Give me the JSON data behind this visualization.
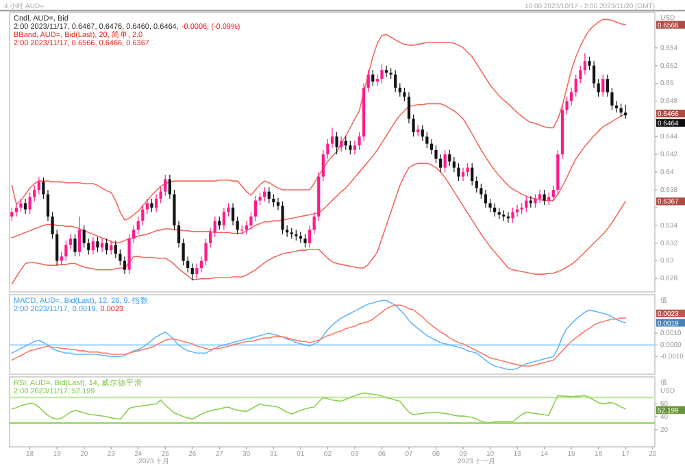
{
  "chart_data": [
    {
      "type": "candlestick",
      "title": "4 小时 AUD=",
      "subtitle": "10:00 2023/10/17 - 2:00 2023/11/20 (GMT)",
      "ylabel": "USD",
      "ohlc": [
        [
          0.635,
          0.636,
          0.6345,
          0.6355
        ],
        [
          0.6355,
          0.6365,
          0.635,
          0.636
        ],
        [
          0.636,
          0.637,
          0.6355,
          0.6365
        ],
        [
          0.6365,
          0.637,
          0.6353,
          0.6358
        ],
        [
          0.6358,
          0.6377,
          0.6353,
          0.6372
        ],
        [
          0.6372,
          0.6385,
          0.6367,
          0.638
        ],
        [
          0.638,
          0.6394,
          0.6375,
          0.6389
        ],
        [
          0.6389,
          0.6394,
          0.637,
          0.6375
        ],
        [
          0.6375,
          0.638,
          0.6345,
          0.635
        ],
        [
          0.635,
          0.6355,
          0.6325,
          0.633
        ],
        [
          0.633,
          0.6335,
          0.6295,
          0.63
        ],
        [
          0.63,
          0.631,
          0.6295,
          0.6305
        ],
        [
          0.6305,
          0.6323,
          0.63,
          0.6318
        ],
        [
          0.6318,
          0.633,
          0.6313,
          0.6325
        ],
        [
          0.6325,
          0.633,
          0.6305,
          0.631
        ],
        [
          0.631,
          0.635,
          0.6305,
          0.6335
        ],
        [
          0.6335,
          0.634,
          0.6315,
          0.632
        ],
        [
          0.632,
          0.6325,
          0.6307,
          0.6312
        ],
        [
          0.6312,
          0.6327,
          0.6307,
          0.6322
        ],
        [
          0.6322,
          0.6327,
          0.631,
          0.6315
        ],
        [
          0.6315,
          0.6325,
          0.631,
          0.632
        ],
        [
          0.632,
          0.6325,
          0.6307,
          0.6312
        ],
        [
          0.6312,
          0.6323,
          0.6307,
          0.6318
        ],
        [
          0.6318,
          0.6323,
          0.6303,
          0.6308
        ],
        [
          0.6308,
          0.6313,
          0.6295,
          0.63
        ],
        [
          0.63,
          0.6305,
          0.6285,
          0.629
        ],
        [
          0.629,
          0.633,
          0.6285,
          0.6325
        ],
        [
          0.6325,
          0.634,
          0.632,
          0.6335
        ],
        [
          0.6335,
          0.635,
          0.633,
          0.6345
        ],
        [
          0.6345,
          0.6363,
          0.634,
          0.6358
        ],
        [
          0.6358,
          0.637,
          0.6353,
          0.6365
        ],
        [
          0.6365,
          0.637,
          0.6355,
          0.636
        ],
        [
          0.636,
          0.6375,
          0.6355,
          0.637
        ],
        [
          0.637,
          0.6383,
          0.6365,
          0.6378
        ],
        [
          0.6378,
          0.6397,
          0.6373,
          0.6392
        ],
        [
          0.6392,
          0.6397,
          0.637,
          0.6375
        ],
        [
          0.6375,
          0.638,
          0.6335,
          0.634
        ],
        [
          0.634,
          0.6345,
          0.6315,
          0.632
        ],
        [
          0.632,
          0.6325,
          0.6295,
          0.63
        ],
        [
          0.63,
          0.6305,
          0.6287,
          0.6292
        ],
        [
          0.6292,
          0.6297,
          0.6278,
          0.6285
        ],
        [
          0.6285,
          0.6297,
          0.628,
          0.6292
        ],
        [
          0.6292,
          0.6305,
          0.6287,
          0.63
        ],
        [
          0.63,
          0.6325,
          0.6295,
          0.632
        ],
        [
          0.632,
          0.6337,
          0.6315,
          0.6332
        ],
        [
          0.6332,
          0.635,
          0.6327,
          0.6345
        ],
        [
          0.6345,
          0.635,
          0.6335,
          0.634
        ],
        [
          0.634,
          0.636,
          0.6335,
          0.6355
        ],
        [
          0.6355,
          0.6365,
          0.635,
          0.636
        ],
        [
          0.636,
          0.6365,
          0.634,
          0.6345
        ],
        [
          0.6345,
          0.635,
          0.633,
          0.6335
        ],
        [
          0.6335,
          0.634,
          0.633,
          0.6335
        ],
        [
          0.6335,
          0.6345,
          0.633,
          0.634
        ],
        [
          0.634,
          0.6355,
          0.6335,
          0.635
        ],
        [
          0.635,
          0.6373,
          0.6345,
          0.6368
        ],
        [
          0.6368,
          0.6377,
          0.6363,
          0.6372
        ],
        [
          0.6372,
          0.6383,
          0.6367,
          0.6378
        ],
        [
          0.6378,
          0.6383,
          0.6365,
          0.637
        ],
        [
          0.637,
          0.6375,
          0.6361,
          0.6366
        ],
        [
          0.6366,
          0.6371,
          0.6357,
          0.6362
        ],
        [
          0.6362,
          0.6367,
          0.633,
          0.6335
        ],
        [
          0.6335,
          0.634,
          0.6327,
          0.6332
        ],
        [
          0.6332,
          0.6337,
          0.6325,
          0.633
        ],
        [
          0.633,
          0.6335,
          0.6323,
          0.6328
        ],
        [
          0.6328,
          0.6333,
          0.632,
          0.6325
        ],
        [
          0.6325,
          0.633,
          0.6315,
          0.632
        ],
        [
          0.632,
          0.634,
          0.6315,
          0.6335
        ],
        [
          0.6335,
          0.6355,
          0.633,
          0.635
        ],
        [
          0.635,
          0.64,
          0.6345,
          0.6395
        ],
        [
          0.6395,
          0.6425,
          0.639,
          0.642
        ],
        [
          0.642,
          0.6437,
          0.6415,
          0.6432
        ],
        [
          0.6432,
          0.645,
          0.6427,
          0.644
        ],
        [
          0.644,
          0.6445,
          0.642,
          0.6428
        ],
        [
          0.6428,
          0.644,
          0.6423,
          0.6435
        ],
        [
          0.6435,
          0.644,
          0.6425,
          0.643
        ],
        [
          0.643,
          0.6435,
          0.642,
          0.6425
        ],
        [
          0.6425,
          0.6435,
          0.642,
          0.643
        ],
        [
          0.643,
          0.6445,
          0.6425,
          0.644
        ],
        [
          0.644,
          0.65,
          0.6435,
          0.6495
        ],
        [
          0.6495,
          0.6515,
          0.649,
          0.651
        ],
        [
          0.651,
          0.6515,
          0.6497,
          0.6502
        ],
        [
          0.6502,
          0.651,
          0.6497,
          0.6505
        ],
        [
          0.6505,
          0.6522,
          0.65,
          0.6515
        ],
        [
          0.6515,
          0.652,
          0.6507,
          0.6512
        ],
        [
          0.6512,
          0.6517,
          0.6505,
          0.651
        ],
        [
          0.651,
          0.6515,
          0.649,
          0.6495
        ],
        [
          0.6495,
          0.65,
          0.6485,
          0.649
        ],
        [
          0.649,
          0.6495,
          0.648,
          0.6485
        ],
        [
          0.6485,
          0.649,
          0.6455,
          0.646
        ],
        [
          0.646,
          0.6465,
          0.644,
          0.6445
        ],
        [
          0.6445,
          0.6453,
          0.644,
          0.6448
        ],
        [
          0.6448,
          0.6453,
          0.6435,
          0.644
        ],
        [
          0.644,
          0.6445,
          0.6427,
          0.6432
        ],
        [
          0.6432,
          0.6437,
          0.642,
          0.6425
        ],
        [
          0.6425,
          0.643,
          0.641,
          0.6415
        ],
        [
          0.6415,
          0.642,
          0.64,
          0.6405
        ],
        [
          0.6405,
          0.6425,
          0.64,
          0.642
        ],
        [
          0.642,
          0.6425,
          0.6407,
          0.6412
        ],
        [
          0.6412,
          0.6417,
          0.64,
          0.6405
        ],
        [
          0.6405,
          0.641,
          0.639,
          0.6395
        ],
        [
          0.6395,
          0.6405,
          0.639,
          0.64
        ],
        [
          0.64,
          0.641,
          0.6395,
          0.6405
        ],
        [
          0.6405,
          0.641,
          0.6385,
          0.639
        ],
        [
          0.639,
          0.6395,
          0.6377,
          0.6382
        ],
        [
          0.6382,
          0.6387,
          0.637,
          0.6375
        ],
        [
          0.6375,
          0.638,
          0.636,
          0.6365
        ],
        [
          0.6365,
          0.637,
          0.6355,
          0.636
        ],
        [
          0.636,
          0.6365,
          0.635,
          0.6355
        ],
        [
          0.6355,
          0.636,
          0.6347,
          0.6352
        ],
        [
          0.6352,
          0.6357,
          0.6345,
          0.635
        ],
        [
          0.635,
          0.6355,
          0.6343,
          0.6348
        ],
        [
          0.6348,
          0.636,
          0.6343,
          0.6355
        ],
        [
          0.6355,
          0.6363,
          0.635,
          0.6358
        ],
        [
          0.6358,
          0.6365,
          0.6353,
          0.636
        ],
        [
          0.636,
          0.6373,
          0.6355,
          0.6368
        ],
        [
          0.6368,
          0.6373,
          0.636,
          0.6365
        ],
        [
          0.6365,
          0.6375,
          0.636,
          0.637
        ],
        [
          0.637,
          0.638,
          0.6365,
          0.6375
        ],
        [
          0.6375,
          0.638,
          0.6363,
          0.6368
        ],
        [
          0.6368,
          0.6377,
          0.6363,
          0.6372
        ],
        [
          0.6372,
          0.6385,
          0.6367,
          0.638
        ],
        [
          0.638,
          0.6425,
          0.6375,
          0.642
        ],
        [
          0.642,
          0.6475,
          0.6415,
          0.647
        ],
        [
          0.647,
          0.6485,
          0.6465,
          0.648
        ],
        [
          0.648,
          0.6495,
          0.6475,
          0.649
        ],
        [
          0.649,
          0.651,
          0.6485,
          0.6505
        ],
        [
          0.6505,
          0.652,
          0.65,
          0.6515
        ],
        [
          0.6515,
          0.6534,
          0.651,
          0.6525
        ],
        [
          0.6525,
          0.653,
          0.6515,
          0.652
        ],
        [
          0.652,
          0.6525,
          0.6495,
          0.65
        ],
        [
          0.65,
          0.6505,
          0.6485,
          0.649
        ],
        [
          0.649,
          0.651,
          0.6485,
          0.6505
        ],
        [
          0.6505,
          0.651,
          0.6485,
          0.649
        ],
        [
          0.649,
          0.6495,
          0.647,
          0.6475
        ],
        [
          0.6475,
          0.648,
          0.6467,
          0.6472
        ],
        [
          0.6472,
          0.6477,
          0.6462,
          0.6467
        ],
        [
          0.6467,
          0.6476,
          0.646,
          0.6464
        ],
        null,
        null,
        null,
        null,
        null,
        null
      ],
      "series": [
        {
          "type": "line",
          "color": "#f4685c",
          "values": [
            0.6385,
            0.6364,
            0.6368,
            0.6375,
            0.6382,
            0.6387,
            0.639,
            0.639,
            0.639,
            0.6389,
            0.6389,
            0.6389,
            0.6388,
            0.6388,
            0.6388,
            0.6388,
            0.6387,
            0.6387,
            0.6387,
            0.6385,
            0.6382,
            0.6379,
            0.6377,
            0.6368,
            0.6355,
            0.6346,
            0.6348,
            0.6352,
            0.6356,
            0.6362,
            0.6368,
            0.6374,
            0.6379,
            0.6384,
            0.6387,
            0.6389,
            0.639,
            0.639,
            0.639,
            0.639,
            0.639,
            0.639,
            0.639,
            0.639,
            0.639,
            0.639,
            0.6391,
            0.6391,
            0.6391,
            0.639,
            0.639,
            0.6384,
            0.6378,
            0.6374,
            0.638,
            0.6386,
            0.639,
            0.6388,
            0.6385,
            0.6382,
            0.638,
            0.638,
            0.638,
            0.638,
            0.638,
            0.638,
            0.638,
            0.6387,
            0.6396,
            0.6404,
            0.6412,
            0.6418,
            0.6423,
            0.6432,
            0.6441,
            0.645,
            0.646,
            0.6469,
            0.649,
            0.651,
            0.653,
            0.6545,
            0.6554,
            0.6555,
            0.6552,
            0.6549,
            0.6546,
            0.6544,
            0.6543,
            0.6543,
            0.6544,
            0.6545,
            0.6546,
            0.6546,
            0.6546,
            0.6546,
            0.6546,
            0.6546,
            0.6545,
            0.6543,
            0.654,
            0.6535,
            0.653,
            0.6522,
            0.6514,
            0.6506,
            0.6498,
            0.6492,
            0.6486,
            0.6481,
            0.6477,
            0.6472,
            0.6467,
            0.6463,
            0.6459,
            0.6456,
            0.6455,
            0.6453,
            0.6451,
            0.645,
            0.645,
            0.646,
            0.6475,
            0.6495,
            0.6515,
            0.653,
            0.6542,
            0.6552,
            0.656,
            0.6565,
            0.6569,
            0.6572,
            0.6572,
            0.6571,
            0.6569,
            0.6567,
            0.6566,
            null,
            null,
            null,
            null,
            null,
            null
          ]
        },
        {
          "type": "line",
          "color": "#f4685c",
          "values": [
            0.6326,
            0.6328,
            0.633,
            0.6332,
            0.6334,
            0.6336,
            0.6338,
            0.634,
            0.6341,
            0.6341,
            0.634,
            0.634,
            0.6339,
            0.6339,
            0.6338,
            0.6336,
            0.6334,
            0.6332,
            0.633,
            0.6328,
            0.6326,
            0.6324,
            0.6322,
            0.632,
            0.6321,
            0.6323,
            0.6325,
            0.6326,
            0.6328,
            0.6329,
            0.633,
            0.6332,
            0.6334,
            0.6335,
            0.6336,
            0.6336,
            0.6335,
            0.6335,
            0.6334,
            0.6334,
            0.6333,
            0.6333,
            0.6333,
            0.6333,
            0.6333,
            0.6332,
            0.6332,
            0.6332,
            0.6332,
            0.6331,
            0.6331,
            0.6331,
            0.6334,
            0.6337,
            0.634,
            0.6342,
            0.6344,
            0.6344,
            0.6345,
            0.6345,
            0.6346,
            0.6347,
            0.6348,
            0.6349,
            0.635,
            0.6351,
            0.6352,
            0.6353,
            0.6354,
            0.6358,
            0.6363,
            0.6368,
            0.6373,
            0.6378,
            0.6382,
            0.6388,
            0.6394,
            0.64,
            0.6406,
            0.6412,
            0.6418,
            0.6425,
            0.6433,
            0.6441,
            0.6449,
            0.6457,
            0.6464,
            0.6469,
            0.6474,
            0.6475,
            0.6476,
            0.6476,
            0.6477,
            0.6477,
            0.6477,
            0.6477,
            0.6475,
            0.6472,
            0.6469,
            0.6465,
            0.646,
            0.6452,
            0.6443,
            0.6434,
            0.6425,
            0.6417,
            0.6409,
            0.6402,
            0.6396,
            0.639,
            0.6385,
            0.6381,
            0.6378,
            0.6375,
            0.6373,
            0.6371,
            0.637,
            0.6369,
            0.6368,
            0.6368,
            0.6368,
            0.6375,
            0.6384,
            0.6394,
            0.6405,
            0.6415,
            0.6422,
            0.6429,
            0.6435,
            0.6441,
            0.6446,
            0.6451,
            0.6454,
            0.6457,
            0.646,
            0.6463,
            0.6466,
            null,
            null,
            null,
            null,
            null,
            null
          ]
        },
        {
          "type": "line",
          "color": "#f4685c",
          "values": [
            0.6274,
            0.6282,
            0.629,
            0.6297,
            0.6298,
            0.6298,
            0.6297,
            0.6296,
            0.6295,
            0.6295,
            0.6295,
            0.6296,
            0.6296,
            0.6297,
            0.6297,
            0.6295,
            0.6293,
            0.6292,
            0.6291,
            0.629,
            0.629,
            0.629,
            0.629,
            0.6291,
            0.6292,
            0.6292,
            0.6298,
            0.6305,
            0.6305,
            0.6304,
            0.6304,
            0.6304,
            0.6303,
            0.6303,
            0.6303,
            0.63,
            0.6296,
            0.6291,
            0.6287,
            0.6283,
            0.6279,
            0.6279,
            0.628,
            0.628,
            0.628,
            0.6281,
            0.6281,
            0.6281,
            0.6281,
            0.6282,
            0.6282,
            0.6282,
            0.6284,
            0.6287,
            0.629,
            0.6294,
            0.6298,
            0.6301,
            0.6304,
            0.6306,
            0.6308,
            0.6309,
            0.631,
            0.6311,
            0.6312,
            0.6312,
            0.6313,
            0.6313,
            0.6313,
            0.6308,
            0.6303,
            0.6299,
            0.6297,
            0.6296,
            0.6295,
            0.6294,
            0.6293,
            0.6292,
            0.6292,
            0.6296,
            0.6303,
            0.631,
            0.6325,
            0.634,
            0.6355,
            0.637,
            0.6385,
            0.6396,
            0.6405,
            0.6408,
            0.641,
            0.641,
            0.641,
            0.6408,
            0.6405,
            0.64,
            0.6394,
            0.6386,
            0.6378,
            0.637,
            0.6362,
            0.6354,
            0.6346,
            0.6338,
            0.633,
            0.6323,
            0.6316,
            0.631,
            0.6304,
            0.6298,
            0.6292,
            0.629,
            0.6289,
            0.6288,
            0.6287,
            0.6286,
            0.6285,
            0.6285,
            0.6285,
            0.6286,
            0.6286,
            0.6288,
            0.629,
            0.6293,
            0.6296,
            0.63,
            0.6305,
            0.631,
            0.6315,
            0.632,
            0.6325,
            0.633,
            0.6336,
            0.6343,
            0.6351,
            0.6359,
            0.6367,
            null,
            null,
            null,
            null,
            null,
            null
          ]
        }
      ],
      "ylim": [
        0.6265,
        0.658
      ],
      "yticks": [
        0.628,
        0.63,
        0.632,
        0.634,
        {
          "value": 0.636,
          "label": null
        },
        0.638,
        0.64,
        0.642,
        0.644,
        {
          "value": 0.646,
          "label": null
        },
        0.648,
        0.65,
        0.652,
        0.654
      ],
      "tick_labels": "y",
      "annotations": [
        "Cndl, AUD=, Bid",
        "2:00 2023/11/17, 0.6467, 0.6476, 0.6460, 0.6464,",
        "-0.0006, (-0.09%)",
        "BBand, AUD=, Bid(Last), 20, 简单, 2.0",
        "2:00 2023/11/17, 0.6566, 0.6466, 0.6367",
        "0.6566",
        "0.6466",
        "0.6464",
        "0.6367"
      ]
    },
    {
      "type": "line",
      "ylabel": "值",
      "series": [
        {
          "color": "#62b6ff",
          "values": [
            -0.0007,
            -0.0005,
            -0.0003,
            -0.0001,
            0.0001,
            0.0003,
            0.0004,
            0.0002,
            0.0,
            -0.0003,
            -0.0005,
            -0.0006,
            -0.0007,
            -0.0007,
            -0.0008,
            -0.0008,
            -0.0008,
            -0.0008,
            -0.0008,
            -0.0008,
            -0.0009,
            -0.0009,
            -0.001,
            -0.001,
            -0.001,
            -0.0009,
            -0.0007,
            -0.0005,
            -0.0004,
            -0.0002,
            0.0001,
            0.0004,
            0.0007,
            0.0009,
            0.0011,
            0.0008,
            0.0004,
            0.0,
            -0.0003,
            -0.0005,
            -0.0006,
            -0.0007,
            -0.0007,
            -0.0007,
            -0.0005,
            -0.0003,
            -0.0001,
            0.0,
            0.0001,
            0.0002,
            0.0003,
            0.0004,
            0.0005,
            0.0006,
            0.0007,
            0.0008,
            0.0009,
            0.001,
            0.0009,
            0.0008,
            0.0007,
            0.0005,
            0.0004,
            0.0002,
            0.0001,
            0.0,
            -0.0001,
            0.0001,
            0.0003,
            0.0008,
            0.0013,
            0.0017,
            0.002,
            0.0023,
            0.0025,
            0.0027,
            0.0029,
            0.0031,
            0.0033,
            0.0035,
            0.0036,
            0.0037,
            0.0038,
            0.0038,
            0.0036,
            0.0034,
            0.003,
            0.0026,
            0.0021,
            0.0017,
            0.0014,
            0.0011,
            0.0008,
            0.0006,
            0.0004,
            0.0002,
            0.0001,
            0.0,
            -0.0001,
            -0.0002,
            -0.0003,
            -0.0005,
            -0.0006,
            -0.0007,
            -0.001,
            -0.0013,
            -0.0016,
            -0.0018,
            -0.0019,
            -0.002,
            -0.0021,
            -0.0021,
            -0.002,
            -0.0018,
            -0.0016,
            -0.0015,
            -0.0014,
            -0.0013,
            -0.0012,
            -0.0011,
            -0.001,
            -0.0003,
            0.0007,
            0.0014,
            0.0018,
            0.0022,
            0.0025,
            0.0028,
            0.003,
            0.0029,
            0.0028,
            0.0027,
            0.0026,
            0.0024,
            0.0022,
            0.002,
            0.0019,
            null,
            null,
            null,
            null,
            null,
            null
          ]
        },
        {
          "color": "#ff7a6a",
          "values": [
            -0.0013,
            -0.0011,
            -0.0009,
            -0.0007,
            -0.0005,
            -0.0004,
            -0.0003,
            -0.0002,
            -0.0001,
            -0.0002,
            -0.0002,
            -0.0003,
            -0.0003,
            -0.0004,
            -0.0004,
            -0.0005,
            -0.0005,
            -0.0006,
            -0.0006,
            -0.0006,
            -0.0007,
            -0.0007,
            -0.0008,
            -0.0008,
            -0.0008,
            -0.0008,
            -0.0007,
            -0.0006,
            -0.0005,
            -0.0004,
            -0.0003,
            -0.0002,
            0.0,
            0.0002,
            0.0004,
            0.0005,
            0.0005,
            0.0004,
            0.0003,
            0.0002,
            0.0001,
            -0.0001,
            -0.0002,
            -0.0003,
            -0.0004,
            -0.0003,
            -0.0003,
            -0.0002,
            -0.0001,
            0.0,
            0.0001,
            0.0002,
            0.0003,
            0.0003,
            0.0004,
            0.0005,
            0.0006,
            0.0006,
            0.0007,
            0.0007,
            0.0007,
            0.0006,
            0.0005,
            0.0004,
            0.0003,
            0.0003,
            0.0002,
            0.0003,
            0.0004,
            0.0006,
            0.0008,
            0.0009,
            0.0011,
            0.0012,
            0.0014,
            0.0015,
            0.0016,
            0.0018,
            0.0019,
            0.002,
            0.0022,
            0.0025,
            0.0028,
            0.0031,
            0.0033,
            0.0034,
            0.0034,
            0.0033,
            0.0031,
            0.003,
            0.0027,
            0.0024,
            0.002,
            0.0017,
            0.0014,
            0.0011,
            0.0009,
            0.0006,
            0.0004,
            0.0002,
            0.0001,
            -0.0001,
            -0.0003,
            -0.0005,
            -0.0007,
            -0.0009,
            -0.0011,
            -0.0012,
            -0.0013,
            -0.0014,
            -0.0015,
            -0.0016,
            -0.0017,
            -0.0018,
            -0.0018,
            -0.0018,
            -0.0017,
            -0.0016,
            -0.0015,
            -0.0014,
            -0.0013,
            -0.0009,
            -0.0005,
            -0.0001,
            0.0003,
            0.0006,
            0.0009,
            0.0012,
            0.0014,
            0.0017,
            0.0019,
            0.002,
            0.0021,
            0.0022,
            0.0022,
            0.0023,
            0.0023,
            null,
            null,
            null,
            null,
            null,
            null
          ]
        }
      ],
      "ylim": [
        -0.0025,
        0.0043
      ],
      "yticks": [
        {
          "value": 0.001,
          "label": "0.0010"
        },
        {
          "value": 0,
          "label": "0.0000"
        },
        {
          "value": -0.001,
          "label": "-0.0010"
        }
      ],
      "tick_labels": "y",
      "ref_lines": [
        {
          "axis": "y",
          "value": 0,
          "color": "#a8d8ff"
        }
      ],
      "annotations": [
        "MACD, AUD=, Bid(Last), 12, 26, 9, 指数",
        "2:00 2023/11/17,",
        "0.0019,",
        "0.0023",
        "0.0023",
        "0.0019"
      ]
    },
    {
      "type": "line",
      "ylabel": "值 USD",
      "categories": [
        null,
        null,
        null,
        null,
        "18",
        null,
        null,
        null,
        null,
        null,
        "19",
        null,
        null,
        null,
        null,
        null,
        "20",
        null,
        null,
        null,
        null,
        null,
        "23",
        null,
        null,
        null,
        null,
        null,
        "24",
        null,
        null,
        null,
        null,
        null,
        "25",
        null,
        null,
        null,
        null,
        null,
        "26",
        null,
        null,
        null,
        null,
        null,
        "27",
        null,
        null,
        null,
        null,
        null,
        "30",
        null,
        null,
        null,
        null,
        null,
        "31",
        null,
        null,
        null,
        null,
        null,
        "01",
        null,
        null,
        null,
        null,
        null,
        "02",
        null,
        null,
        null,
        null,
        null,
        "03",
        null,
        null,
        null,
        null,
        null,
        "06",
        null,
        null,
        null,
        null,
        null,
        "07",
        null,
        null,
        null,
        null,
        null,
        "08",
        null,
        null,
        null,
        null,
        null,
        "09",
        null,
        null,
        null,
        null,
        null,
        "10",
        null,
        null,
        null,
        null,
        null,
        "13",
        null,
        null,
        null,
        null,
        null,
        "14",
        null,
        null,
        null,
        null,
        null,
        "15",
        null,
        null,
        null,
        null,
        null,
        "16",
        null,
        null,
        null,
        null,
        null,
        "17",
        null,
        null,
        null,
        null,
        null,
        "20"
      ],
      "series": [
        {
          "color": "#8ccf4d",
          "values": [
            52,
            54,
            57,
            59,
            61,
            60,
            55,
            48,
            42,
            38,
            36,
            38,
            42,
            47,
            50,
            48,
            46,
            44,
            43,
            42,
            41,
            40,
            38,
            37,
            36,
            44,
            53,
            55,
            56,
            57,
            58,
            59,
            60,
            66,
            58,
            52,
            46,
            43,
            40,
            38,
            36,
            40,
            44,
            47,
            49,
            51,
            52,
            54,
            55,
            52,
            50,
            49,
            48,
            52,
            56,
            60,
            58,
            57,
            56,
            55,
            51,
            47,
            44,
            47,
            50,
            52,
            54,
            55,
            63,
            70,
            68,
            66,
            65,
            64,
            67,
            70,
            73,
            75,
            77,
            76,
            75,
            74,
            72,
            70,
            68,
            66,
            64,
            55,
            47,
            43,
            44,
            45,
            46,
            46,
            47,
            46,
            45,
            44,
            42,
            41,
            41,
            40,
            39,
            36,
            33,
            31,
            31,
            32,
            32,
            32,
            32,
            32,
            38,
            43,
            47,
            46,
            45,
            44,
            43,
            42,
            58,
            73,
            72,
            72,
            71,
            72,
            72,
            73,
            70,
            66,
            62,
            60,
            61,
            62,
            59,
            55,
            52.199,
            null,
            null,
            null,
            null,
            null,
            null
          ]
        }
      ],
      "ylim": [
        -7,
        102
      ],
      "yticks": [
        20,
        40,
        60
      ],
      "ref_lines": [
        {
          "axis": "y",
          "value": 70,
          "color": "#c5e8a5"
        },
        {
          "axis": "y",
          "value": 30,
          "color": "#8ccf4d"
        }
      ],
      "annotations": [
        "RSI, AUD=, Bid(Last), 14, 威尔德平滑",
        "2:00 2023/11/17, 52.199",
        "2023 十月",
        "2023 十一月",
        "52.199"
      ]
    }
  ]
}
